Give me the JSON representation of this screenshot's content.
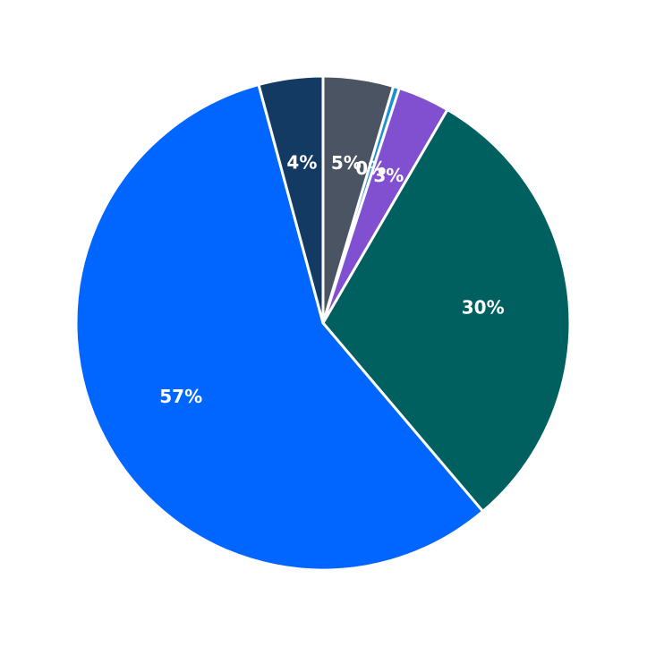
{
  "chart_data": {
    "type": "pie",
    "values": [
      4.6,
      0.4,
      3.4,
      30.4,
      57,
      4.2
    ],
    "value_labels": [
      "5%",
      "0%",
      "3%",
      "30%",
      "57%",
      "4%"
    ],
    "colors": [
      "#4a5462",
      "#1a90d0",
      "#8050d0",
      "#005f5f",
      "#0066ff",
      "#133a63"
    ]
  }
}
